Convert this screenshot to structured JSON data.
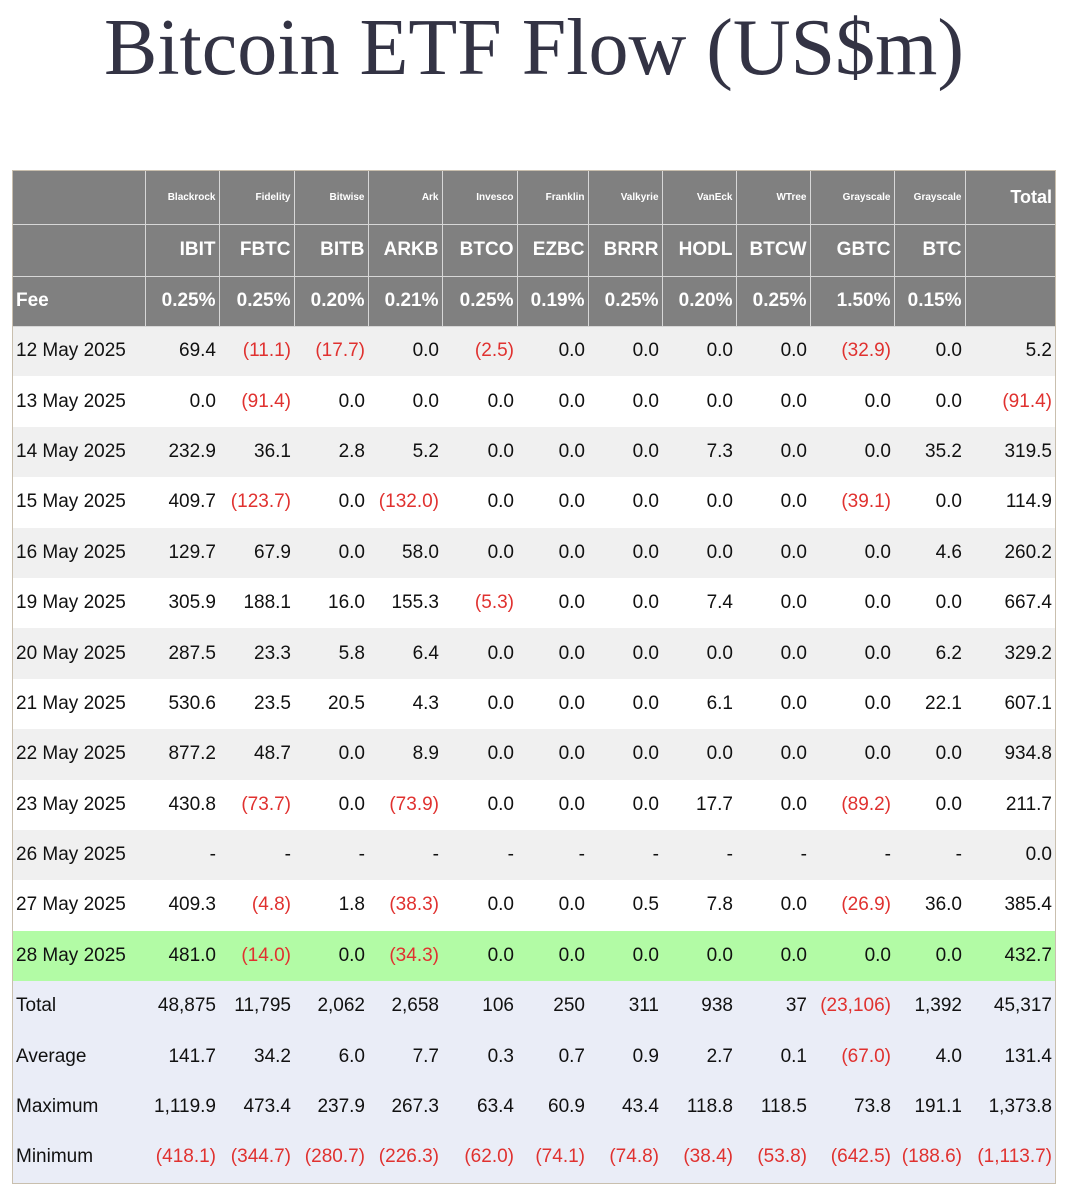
{
  "title": "Bitcoin ETF Flow (US$m)",
  "colors": {
    "header_bg": "#808080",
    "row_odd": "#f0f0f0",
    "row_even": "#ffffff",
    "row_highlight": "#b2fba5",
    "summary_bg": "#eaedf7",
    "negative": "#e0312f"
  },
  "header": {
    "issuers": [
      "Blackrock",
      "Fidelity",
      "Bitwise",
      "Ark",
      "Invesco",
      "Franklin",
      "Valkyrie",
      "VanEck",
      "WTree",
      "Grayscale",
      "Grayscale"
    ],
    "total_label": "Total",
    "tickers": [
      "IBIT",
      "FBTC",
      "BITB",
      "ARKB",
      "BTCO",
      "EZBC",
      "BRRR",
      "HODL",
      "BTCW",
      "GBTC",
      "BTC"
    ],
    "fee_label": "Fee",
    "fees": [
      "0.25%",
      "0.25%",
      "0.20%",
      "0.21%",
      "0.25%",
      "0.19%",
      "0.25%",
      "0.20%",
      "0.25%",
      "1.50%",
      "0.15%"
    ]
  },
  "rows": [
    {
      "date": "12 May 2025",
      "values": [
        "69.4",
        "(11.1)",
        "(17.7)",
        "0.0",
        "(2.5)",
        "0.0",
        "0.0",
        "0.0",
        "0.0",
        "(32.9)",
        "0.0",
        "5.2"
      ]
    },
    {
      "date": "13 May 2025",
      "values": [
        "0.0",
        "(91.4)",
        "0.0",
        "0.0",
        "0.0",
        "0.0",
        "0.0",
        "0.0",
        "0.0",
        "0.0",
        "0.0",
        "(91.4)"
      ]
    },
    {
      "date": "14 May 2025",
      "values": [
        "232.9",
        "36.1",
        "2.8",
        "5.2",
        "0.0",
        "0.0",
        "0.0",
        "7.3",
        "0.0",
        "0.0",
        "35.2",
        "319.5"
      ]
    },
    {
      "date": "15 May 2025",
      "values": [
        "409.7",
        "(123.7)",
        "0.0",
        "(132.0)",
        "0.0",
        "0.0",
        "0.0",
        "0.0",
        "0.0",
        "(39.1)",
        "0.0",
        "114.9"
      ]
    },
    {
      "date": "16 May 2025",
      "values": [
        "129.7",
        "67.9",
        "0.0",
        "58.0",
        "0.0",
        "0.0",
        "0.0",
        "0.0",
        "0.0",
        "0.0",
        "4.6",
        "260.2"
      ]
    },
    {
      "date": "19 May 2025",
      "values": [
        "305.9",
        "188.1",
        "16.0",
        "155.3",
        "(5.3)",
        "0.0",
        "0.0",
        "7.4",
        "0.0",
        "0.0",
        "0.0",
        "667.4"
      ]
    },
    {
      "date": "20 May 2025",
      "values": [
        "287.5",
        "23.3",
        "5.8",
        "6.4",
        "0.0",
        "0.0",
        "0.0",
        "0.0",
        "0.0",
        "0.0",
        "6.2",
        "329.2"
      ]
    },
    {
      "date": "21 May 2025",
      "values": [
        "530.6",
        "23.5",
        "20.5",
        "4.3",
        "0.0",
        "0.0",
        "0.0",
        "6.1",
        "0.0",
        "0.0",
        "22.1",
        "607.1"
      ]
    },
    {
      "date": "22 May 2025",
      "values": [
        "877.2",
        "48.7",
        "0.0",
        "8.9",
        "0.0",
        "0.0",
        "0.0",
        "0.0",
        "0.0",
        "0.0",
        "0.0",
        "934.8"
      ]
    },
    {
      "date": "23 May 2025",
      "values": [
        "430.8",
        "(73.7)",
        "0.0",
        "(73.9)",
        "0.0",
        "0.0",
        "0.0",
        "17.7",
        "0.0",
        "(89.2)",
        "0.0",
        "211.7"
      ]
    },
    {
      "date": "26 May 2025",
      "values": [
        "-",
        "-",
        "-",
        "-",
        "-",
        "-",
        "-",
        "-",
        "-",
        "-",
        "-",
        "0.0"
      ]
    },
    {
      "date": "27 May 2025",
      "values": [
        "409.3",
        "(4.8)",
        "1.8",
        "(38.3)",
        "0.0",
        "0.0",
        "0.5",
        "7.8",
        "0.0",
        "(26.9)",
        "36.0",
        "385.4"
      ]
    },
    {
      "date": "28 May 2025",
      "values": [
        "481.0",
        "(14.0)",
        "0.0",
        "(34.3)",
        "0.0",
        "0.0",
        "0.0",
        "0.0",
        "0.0",
        "0.0",
        "0.0",
        "432.7"
      ],
      "highlight": true
    }
  ],
  "summary": [
    {
      "label": "Total",
      "values": [
        "48,875",
        "11,795",
        "2,062",
        "2,658",
        "106",
        "250",
        "311",
        "938",
        "37",
        "(23,106)",
        "1,392",
        "45,317"
      ]
    },
    {
      "label": "Average",
      "values": [
        "141.7",
        "34.2",
        "6.0",
        "7.7",
        "0.3",
        "0.7",
        "0.9",
        "2.7",
        "0.1",
        "(67.0)",
        "4.0",
        "131.4"
      ]
    },
    {
      "label": "Maximum",
      "values": [
        "1,119.9",
        "473.4",
        "237.9",
        "267.3",
        "63.4",
        "60.9",
        "43.4",
        "118.8",
        "118.5",
        "73.8",
        "191.1",
        "1,373.8"
      ]
    },
    {
      "label": "Minimum",
      "values": [
        "(418.1)",
        "(344.7)",
        "(280.7)",
        "(226.3)",
        "(62.0)",
        "(74.1)",
        "(74.8)",
        "(38.4)",
        "(53.8)",
        "(642.5)",
        "(188.6)",
        "(1,113.7)"
      ]
    }
  ]
}
